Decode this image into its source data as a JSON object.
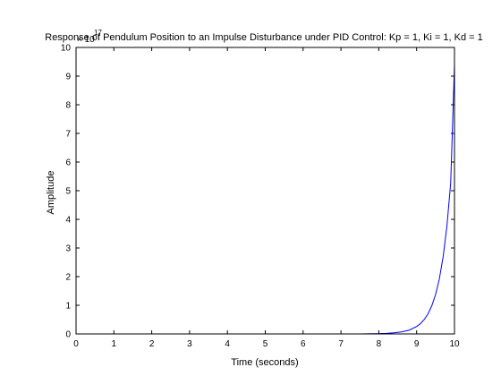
{
  "chart_data": {
    "type": "line",
    "title": "Response of Pendulum Position to an Impulse Disturbance under PID Control: Kp = 1, Ki = 1, Kd = 1",
    "xlabel": "Time (seconds)",
    "ylabel": "Amplitude",
    "exponent_label": "× 10",
    "exponent_power": "17",
    "xlim": [
      0,
      10
    ],
    "ylim": [
      0,
      10
    ],
    "x_ticks": [
      "0",
      "1",
      "2",
      "3",
      "4",
      "5",
      "6",
      "7",
      "8",
      "9",
      "10"
    ],
    "y_ticks": [
      "0",
      "1",
      "2",
      "3",
      "4",
      "5",
      "6",
      "7",
      "8",
      "9",
      "10"
    ],
    "grid": false,
    "legend": "none",
    "series": [
      {
        "color": "#0000ff",
        "x": [
          0,
          1,
          2,
          3,
          4,
          5,
          6,
          7,
          7.5,
          8,
          8.2,
          8.4,
          8.6,
          8.8,
          9.0,
          9.1,
          9.2,
          9.3,
          9.4,
          9.5,
          9.6,
          9.7,
          9.8,
          9.9,
          10.0
        ],
        "y": [
          0,
          0,
          0,
          0,
          0,
          0,
          0,
          0,
          0,
          0.01,
          0.02,
          0.04,
          0.07,
          0.13,
          0.26,
          0.36,
          0.5,
          0.7,
          0.98,
          1.37,
          1.92,
          2.69,
          3.76,
          5.27,
          9.4
        ]
      }
    ]
  }
}
